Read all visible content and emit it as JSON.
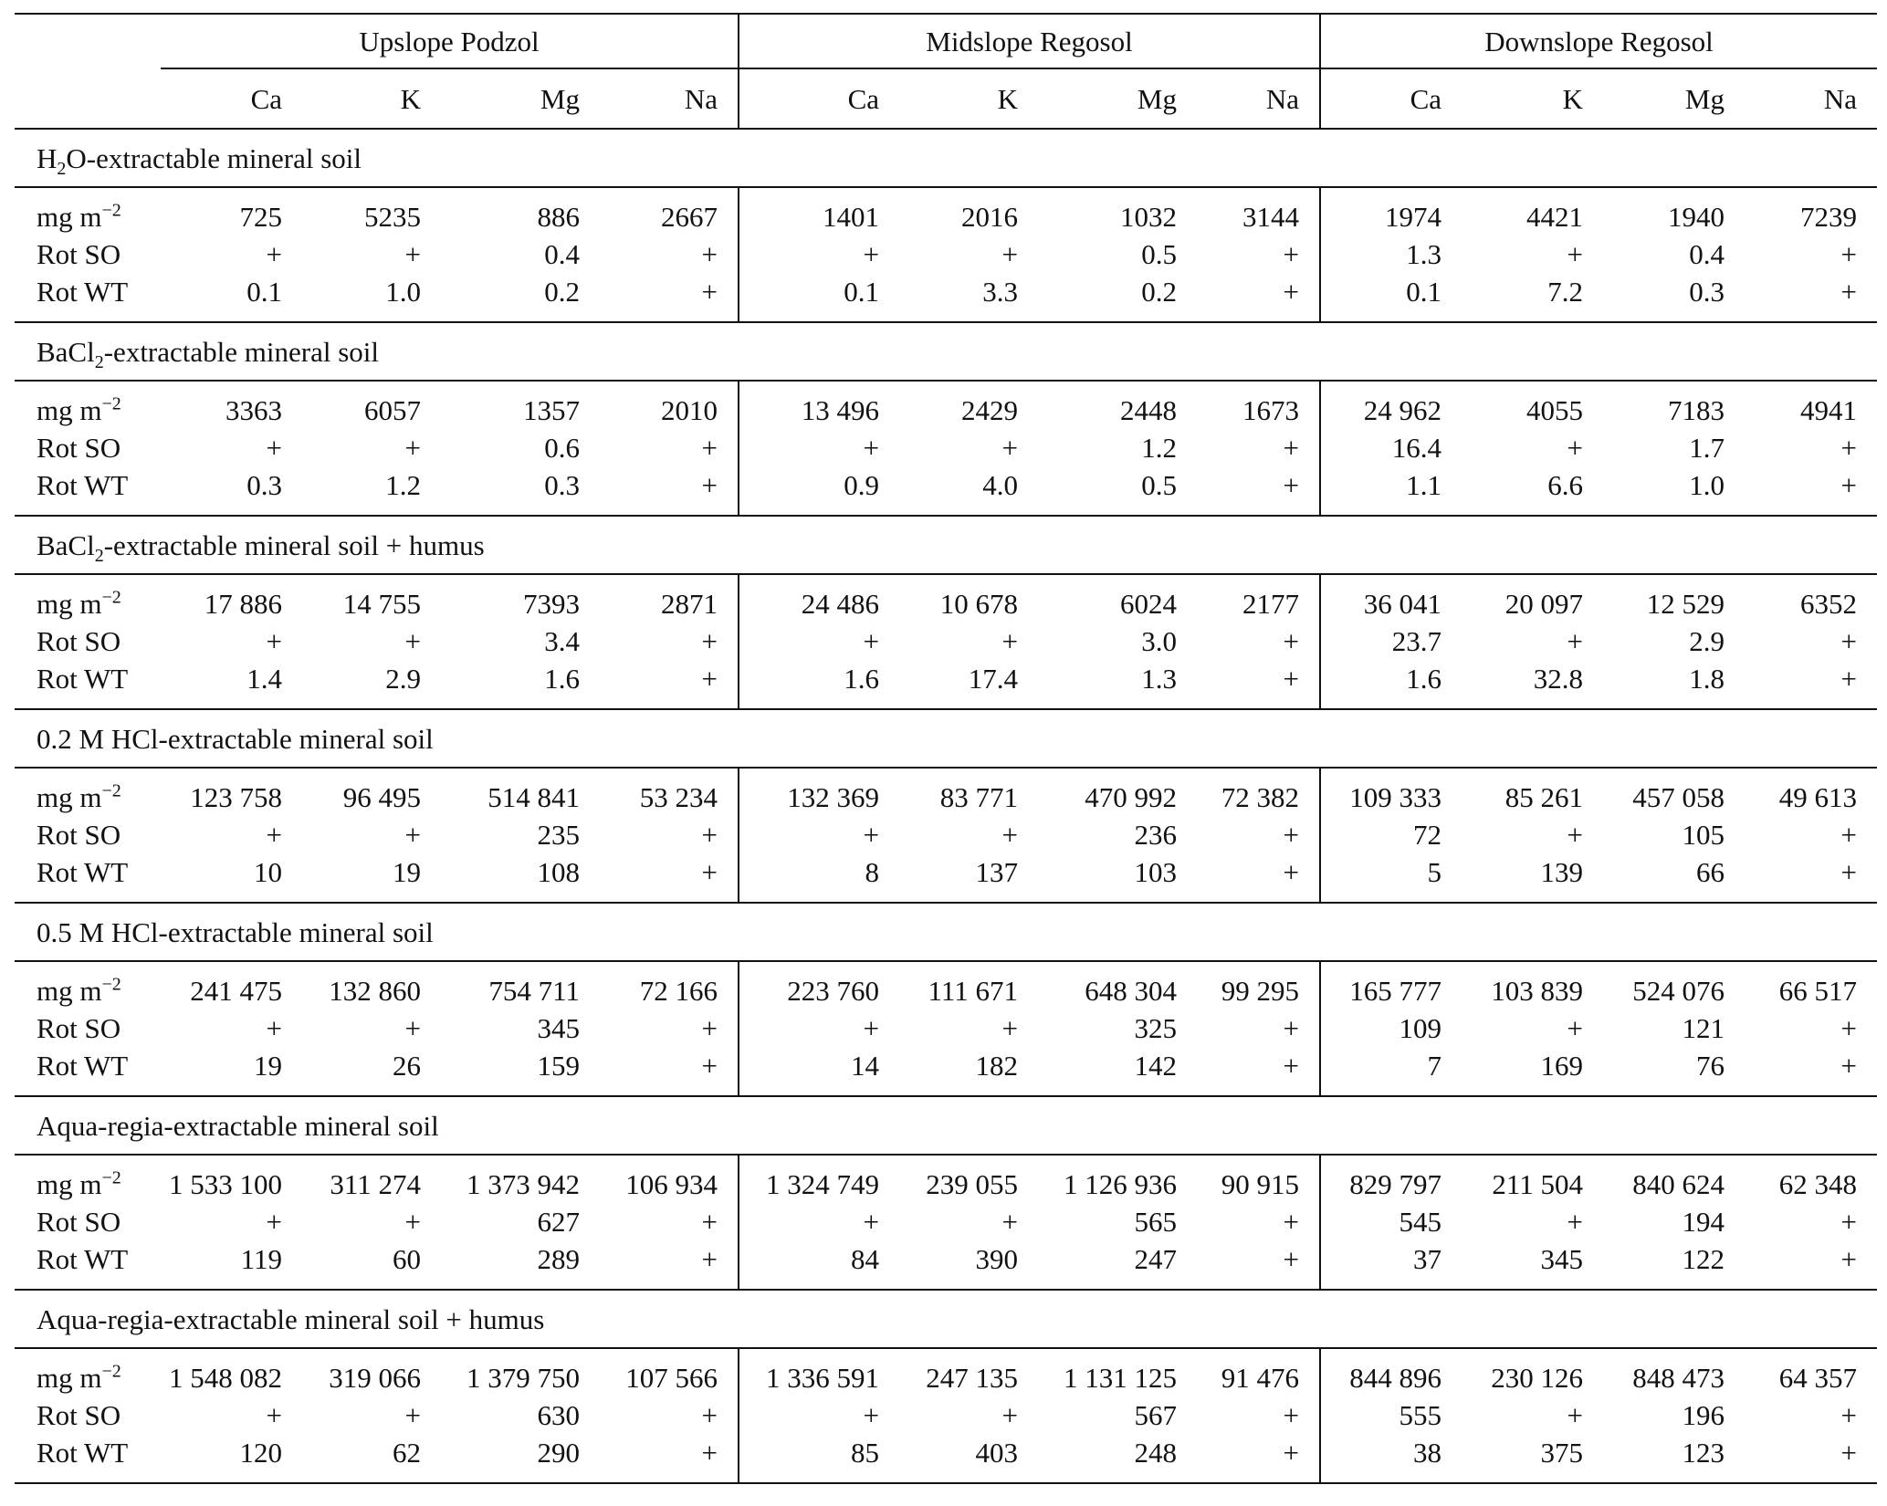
{
  "groups": [
    "Upslope Podzol",
    "Midslope Regosol",
    "Downslope Regosol"
  ],
  "elements": [
    "Ca",
    "K",
    "Mg",
    "Na"
  ],
  "unit_label_base": "mg m",
  "unit_label_exp": "−2",
  "sections": [
    {
      "title_parts": [
        "H",
        "2",
        "O-extractable mineral soil"
      ],
      "rows": [
        {
          "label": "unit",
          "values": [
            "725",
            "5235",
            "886",
            "2667",
            "1401",
            "2016",
            "1032",
            "3144",
            "1974",
            "4421",
            "1940",
            "7239"
          ]
        },
        {
          "label": "Rot SO",
          "values": [
            "+",
            "+",
            "0.4",
            "+",
            "+",
            "+",
            "0.5",
            "+",
            "1.3",
            "+",
            "0.4",
            "+"
          ]
        },
        {
          "label": "Rot WT",
          "values": [
            "0.1",
            "1.0",
            "0.2",
            "+",
            "0.1",
            "3.3",
            "0.2",
            "+",
            "0.1",
            "7.2",
            "0.3",
            "+"
          ]
        }
      ]
    },
    {
      "title_parts": [
        "BaCl",
        "2",
        "-extractable mineral soil"
      ],
      "rows": [
        {
          "label": "unit",
          "values": [
            "3363",
            "6057",
            "1357",
            "2010",
            "13 496",
            "2429",
            "2448",
            "1673",
            "24 962",
            "4055",
            "7183",
            "4941"
          ]
        },
        {
          "label": "Rot SO",
          "values": [
            "+",
            "+",
            "0.6",
            "+",
            "+",
            "+",
            "1.2",
            "+",
            "16.4",
            "+",
            "1.7",
            "+"
          ]
        },
        {
          "label": "Rot WT",
          "values": [
            "0.3",
            "1.2",
            "0.3",
            "+",
            "0.9",
            "4.0",
            "0.5",
            "+",
            "1.1",
            "6.6",
            "1.0",
            "+"
          ]
        }
      ]
    },
    {
      "title_parts": [
        "BaCl",
        "2",
        "-extractable mineral soil + humus"
      ],
      "rows": [
        {
          "label": "unit",
          "values": [
            "17 886",
            "14 755",
            "7393",
            "2871",
            "24 486",
            "10 678",
            "6024",
            "2177",
            "36 041",
            "20 097",
            "12 529",
            "6352"
          ]
        },
        {
          "label": "Rot SO",
          "values": [
            "+",
            "+",
            "3.4",
            "+",
            "+",
            "+",
            "3.0",
            "+",
            "23.7",
            "+",
            "2.9",
            "+"
          ]
        },
        {
          "label": "Rot WT",
          "values": [
            "1.4",
            "2.9",
            "1.6",
            "+",
            "1.6",
            "17.4",
            "1.3",
            "+",
            "1.6",
            "32.8",
            "1.8",
            "+"
          ]
        }
      ]
    },
    {
      "title_parts": [
        "0.2 M HCl-extractable mineral soil",
        "",
        ""
      ],
      "rows": [
        {
          "label": "unit",
          "values": [
            "123 758",
            "96 495",
            "514 841",
            "53 234",
            "132 369",
            "83 771",
            "470 992",
            "72 382",
            "109 333",
            "85 261",
            "457 058",
            "49 613"
          ]
        },
        {
          "label": "Rot SO",
          "values": [
            "+",
            "+",
            "235",
            "+",
            "+",
            "+",
            "236",
            "+",
            "72",
            "+",
            "105",
            "+"
          ]
        },
        {
          "label": "Rot WT",
          "values": [
            "10",
            "19",
            "108",
            "+",
            "8",
            "137",
            "103",
            "+",
            "5",
            "139",
            "66",
            "+"
          ]
        }
      ]
    },
    {
      "title_parts": [
        "0.5 M HCl-extractable mineral soil",
        "",
        ""
      ],
      "rows": [
        {
          "label": "unit",
          "values": [
            "241 475",
            "132 860",
            "754 711",
            "72 166",
            "223 760",
            "111 671",
            "648 304",
            "99 295",
            "165 777",
            "103 839",
            "524 076",
            "66 517"
          ]
        },
        {
          "label": "Rot SO",
          "values": [
            "+",
            "+",
            "345",
            "+",
            "+",
            "+",
            "325",
            "+",
            "109",
            "+",
            "121",
            "+"
          ]
        },
        {
          "label": "Rot WT",
          "values": [
            "19",
            "26",
            "159",
            "+",
            "14",
            "182",
            "142",
            "+",
            "7",
            "169",
            "76",
            "+"
          ]
        }
      ]
    },
    {
      "title_parts": [
        "Aqua-regia-extractable mineral soil",
        "",
        ""
      ],
      "rows": [
        {
          "label": "unit",
          "values": [
            "1 533 100",
            "311 274",
            "1 373 942",
            "106 934",
            "1 324 749",
            "239 055",
            "1 126 936",
            "90 915",
            "829 797",
            "211 504",
            "840 624",
            "62 348"
          ]
        },
        {
          "label": "Rot SO",
          "values": [
            "+",
            "+",
            "627",
            "+",
            "+",
            "+",
            "565",
            "+",
            "545",
            "+",
            "194",
            "+"
          ]
        },
        {
          "label": "Rot WT",
          "values": [
            "119",
            "60",
            "289",
            "+",
            "84",
            "390",
            "247",
            "+",
            "37",
            "345",
            "122",
            "+"
          ]
        }
      ]
    },
    {
      "title_parts": [
        "Aqua-regia-extractable mineral soil + humus",
        "",
        ""
      ],
      "rows": [
        {
          "label": "unit",
          "values": [
            "1 548 082",
            "319 066",
            "1 379 750",
            "107 566",
            "1 336 591",
            "247 135",
            "1 131 125",
            "91 476",
            "844 896",
            "230 126",
            "848 473",
            "64 357"
          ]
        },
        {
          "label": "Rot SO",
          "values": [
            "+",
            "+",
            "630",
            "+",
            "+",
            "+",
            "567",
            "+",
            "555",
            "+",
            "196",
            "+"
          ]
        },
        {
          "label": "Rot WT",
          "values": [
            "120",
            "62",
            "290",
            "+",
            "85",
            "403",
            "248",
            "+",
            "38",
            "375",
            "123",
            "+"
          ]
        }
      ]
    }
  ]
}
